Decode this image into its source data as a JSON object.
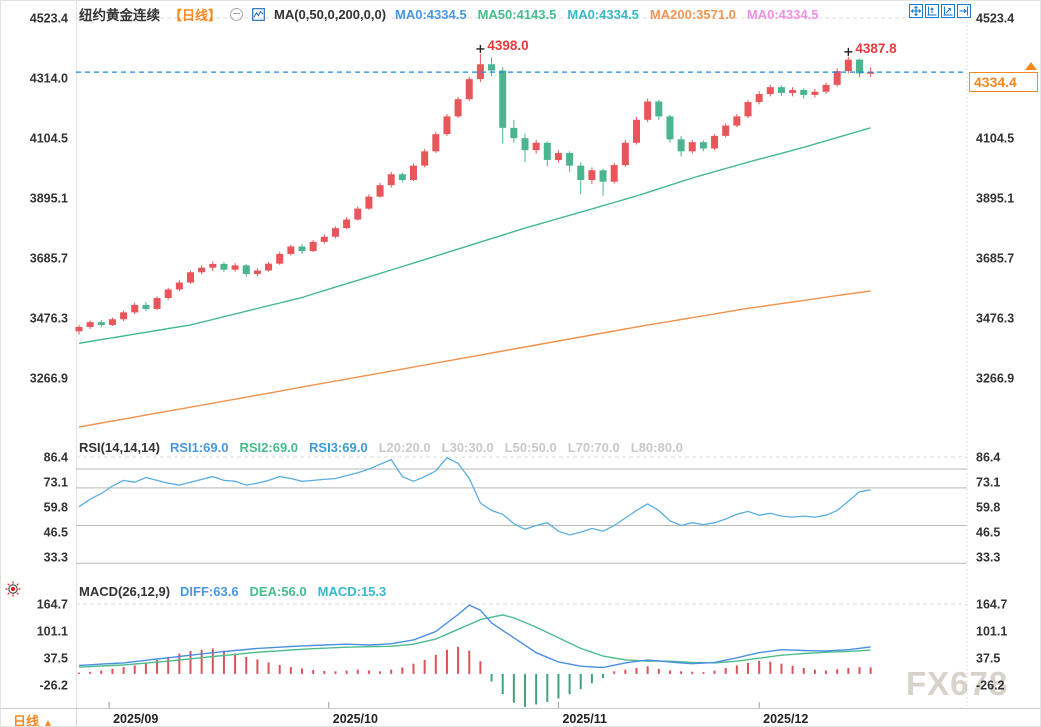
{
  "header": {
    "title": "纽约黄金连续",
    "period_tag": "【日线】",
    "ma_label": "MA(0,50,0,200,0,0)",
    "ma_values": [
      {
        "label": "MA0:4334.5",
        "color": "#4a97e0"
      },
      {
        "label": "MA50:4143.5",
        "color": "#45bd8b"
      },
      {
        "label": "MA0:4334.5",
        "color": "#38b8c4"
      },
      {
        "label": "MA200:3571.0",
        "color": "#f29552"
      },
      {
        "label": "MA0:4334.5",
        "color": "#ef8ee4"
      }
    ],
    "toolbar_icons": [
      "pan-tool",
      "fit-y-axis",
      "fit-x-axis",
      "jump-to-latest"
    ]
  },
  "rsi_header": {
    "label": "RSI(14,14,14)",
    "values": [
      {
        "label": "RSI1:69.0",
        "color": "#4a97e0"
      },
      {
        "label": "RSI2:69.0",
        "color": "#45bd8b"
      },
      {
        "label": "RSI3:69.0",
        "color": "#3b9bd8"
      },
      {
        "label": "L20:20.0",
        "color": "#c9c9c9"
      },
      {
        "label": "L30:30.0",
        "color": "#c9c9c9"
      },
      {
        "label": "L50:50.0",
        "color": "#c9c9c9"
      },
      {
        "label": "L70:70.0",
        "color": "#c9c9c9"
      },
      {
        "label": "L80:80.0",
        "color": "#c9c9c9"
      }
    ]
  },
  "macd_header": {
    "label": "MACD(26,12,9)",
    "values": [
      {
        "label": "DIFF:63.6",
        "color": "#4a97e0"
      },
      {
        "label": "DEA:56.0",
        "color": "#45bd8b"
      },
      {
        "label": "MACD:15.3",
        "color": "#35b8ce"
      }
    ]
  },
  "bottom": {
    "period_label": "日线",
    "arrow": "▲"
  },
  "price_tag": {
    "value": "4334.4"
  },
  "watermark": "FX678",
  "colors": {
    "up": "#e8555b",
    "down": "#4ab58e",
    "ma50": "#45b98c",
    "ma200": "#f0934e",
    "rsi_line": "#5aaede",
    "diff": "#4a90e2",
    "dea": "#4dbd8e",
    "hist_up": "#d9535a",
    "hist_down": "#3fa37c",
    "price_line": "#1e88e5",
    "tag": "#f7871f",
    "annotation": "#e8383d",
    "axis_text": "#333333",
    "grid_dash": "#dcdcdc",
    "rsi_level": "#b9b9b9"
  },
  "chart_data": {
    "type": "candlestick",
    "title": "纽约黄金连续【日线】",
    "legend_position": "top",
    "main": {
      "y_ticks": [
        "4523.4",
        "4314.0",
        "4104.5",
        "3895.1",
        "3685.7",
        "3476.3",
        "3266.9"
      ],
      "ylim": [
        3180,
        4523.4
      ],
      "last_price": 4334.4,
      "candles": [
        [
          3430,
          3452,
          3418,
          3445
        ],
        [
          3445,
          3468,
          3438,
          3462
        ],
        [
          3462,
          3470,
          3444,
          3452
        ],
        [
          3452,
          3478,
          3448,
          3472
        ],
        [
          3472,
          3502,
          3466,
          3496
        ],
        [
          3496,
          3530,
          3490,
          3522
        ],
        [
          3522,
          3532,
          3500,
          3508
        ],
        [
          3508,
          3552,
          3504,
          3546
        ],
        [
          3546,
          3582,
          3540,
          3576
        ],
        [
          3576,
          3608,
          3570,
          3600
        ],
        [
          3600,
          3642,
          3596,
          3636
        ],
        [
          3636,
          3660,
          3628,
          3652
        ],
        [
          3652,
          3674,
          3640,
          3665
        ],
        [
          3665,
          3672,
          3636,
          3645
        ],
        [
          3645,
          3668,
          3638,
          3660
        ],
        [
          3660,
          3664,
          3620,
          3630
        ],
        [
          3630,
          3650,
          3622,
          3642
        ],
        [
          3642,
          3672,
          3638,
          3666
        ],
        [
          3666,
          3708,
          3662,
          3700
        ],
        [
          3700,
          3732,
          3694,
          3726
        ],
        [
          3726,
          3734,
          3700,
          3710
        ],
        [
          3710,
          3748,
          3706,
          3742
        ],
        [
          3742,
          3768,
          3736,
          3760
        ],
        [
          3760,
          3796,
          3754,
          3790
        ],
        [
          3790,
          3828,
          3786,
          3820
        ],
        [
          3820,
          3866,
          3816,
          3858
        ],
        [
          3858,
          3908,
          3854,
          3900
        ],
        [
          3900,
          3948,
          3896,
          3940
        ],
        [
          3940,
          3986,
          3932,
          3978
        ],
        [
          3978,
          3984,
          3950,
          3958
        ],
        [
          3958,
          4016,
          3954,
          4008
        ],
        [
          4008,
          4066,
          4002,
          4058
        ],
        [
          4058,
          4126,
          4052,
          4118
        ],
        [
          4118,
          4188,
          4112,
          4180
        ],
        [
          4180,
          4248,
          4174,
          4240
        ],
        [
          4240,
          4318,
          4234,
          4310
        ],
        [
          4310,
          4398,
          4300,
          4362
        ],
        [
          4362,
          4386,
          4320,
          4340
        ],
        [
          4340,
          4352,
          4085,
          4140
        ],
        [
          4140,
          4168,
          4088,
          4104
        ],
        [
          4104,
          4120,
          4020,
          4062
        ],
        [
          4062,
          4098,
          4050,
          4088
        ],
        [
          4088,
          4092,
          4006,
          4028
        ],
        [
          4028,
          4062,
          4018,
          4052
        ],
        [
          4052,
          4058,
          3985,
          4008
        ],
        [
          4008,
          4020,
          3908,
          3958
        ],
        [
          3958,
          4002,
          3944,
          3992
        ],
        [
          3992,
          3998,
          3902,
          3952
        ],
        [
          3952,
          4018,
          3946,
          4010
        ],
        [
          4010,
          4098,
          4004,
          4088
        ],
        [
          4088,
          4178,
          4082,
          4168
        ],
        [
          4168,
          4242,
          4160,
          4232
        ],
        [
          4232,
          4238,
          4168,
          4180
        ],
        [
          4180,
          4186,
          4088,
          4100
        ],
        [
          4100,
          4112,
          4040,
          4058
        ],
        [
          4058,
          4098,
          4050,
          4090
        ],
        [
          4090,
          4096,
          4058,
          4068
        ],
        [
          4068,
          4118,
          4062,
          4112
        ],
        [
          4112,
          4156,
          4106,
          4148
        ],
        [
          4148,
          4188,
          4142,
          4180
        ],
        [
          4180,
          4238,
          4174,
          4230
        ],
        [
          4230,
          4268,
          4222,
          4258
        ],
        [
          4258,
          4290,
          4250,
          4282
        ],
        [
          4282,
          4288,
          4252,
          4262
        ],
        [
          4262,
          4282,
          4250,
          4272
        ],
        [
          4272,
          4278,
          4242,
          4255
        ],
        [
          4255,
          4276,
          4246,
          4266
        ],
        [
          4266,
          4298,
          4258,
          4290
        ],
        [
          4290,
          4348,
          4284,
          4338
        ],
        [
          4338,
          4387.8,
          4330,
          4378
        ],
        [
          4378,
          4382,
          4316,
          4330
        ],
        [
          4330,
          4352,
          4318,
          4334.4
        ]
      ],
      "ma50_anchors": [
        [
          0,
          3388
        ],
        [
          10,
          3452
        ],
        [
          20,
          3548
        ],
        [
          30,
          3668
        ],
        [
          40,
          3790
        ],
        [
          50,
          3902
        ],
        [
          55,
          3965
        ],
        [
          60,
          4020
        ],
        [
          65,
          4072
        ],
        [
          71,
          4140
        ]
      ],
      "ma200_anchors": [
        [
          0,
          3096
        ],
        [
          10,
          3165
        ],
        [
          20,
          3235
        ],
        [
          30,
          3305
        ],
        [
          40,
          3375
        ],
        [
          50,
          3445
        ],
        [
          60,
          3510
        ],
        [
          71,
          3571
        ]
      ],
      "high_markers": [
        {
          "index": 36,
          "price": 4398.0,
          "label": "4398.0"
        },
        {
          "index": 69,
          "price": 4387.8,
          "label": "4387.8"
        }
      ]
    },
    "rsi": {
      "y_ticks": [
        "86.4",
        "73.1",
        "59.8",
        "46.5",
        "33.3"
      ],
      "levels": [
        80,
        70,
        50,
        30
      ],
      "values": [
        60,
        64,
        67,
        71,
        74,
        73,
        75.5,
        74,
        72.5,
        71.5,
        73,
        74.5,
        76,
        74,
        73.5,
        71.5,
        72.5,
        74,
        76,
        75,
        73.5,
        74,
        74.5,
        75,
        76.5,
        78,
        80,
        82.5,
        85,
        76,
        73.5,
        76,
        79,
        86,
        83,
        75,
        62,
        58,
        56,
        51,
        48,
        50,
        51.5,
        47,
        45,
        46.5,
        48.5,
        47,
        50,
        54,
        58,
        61.5,
        58,
        52.5,
        50,
        51.5,
        50.5,
        51.5,
        53.5,
        56,
        57.5,
        55.5,
        56.5,
        55,
        54.5,
        55,
        54.5,
        55.5,
        58,
        63,
        68,
        69
      ]
    },
    "macd": {
      "y_ticks": [
        "164.7",
        "101.1",
        "37.5",
        "-26.2"
      ],
      "diff_anchors": [
        [
          0,
          20
        ],
        [
          4,
          26
        ],
        [
          8,
          38
        ],
        [
          12,
          50
        ],
        [
          16,
          60
        ],
        [
          20,
          66
        ],
        [
          24,
          70
        ],
        [
          26,
          68
        ],
        [
          28,
          71
        ],
        [
          30,
          80
        ],
        [
          32,
          100
        ],
        [
          34,
          140
        ],
        [
          35,
          162
        ],
        [
          36,
          150
        ],
        [
          37,
          120
        ],
        [
          39,
          85
        ],
        [
          41,
          50
        ],
        [
          43,
          28
        ],
        [
          45,
          18
        ],
        [
          47,
          15
        ],
        [
          49,
          26
        ],
        [
          51,
          33
        ],
        [
          53,
          28
        ],
        [
          55,
          24
        ],
        [
          57,
          27
        ],
        [
          59,
          38
        ],
        [
          61,
          50
        ],
        [
          63,
          57
        ],
        [
          65,
          55
        ],
        [
          67,
          54
        ],
        [
          69,
          57
        ],
        [
          71,
          63.6
        ]
      ],
      "dea_anchors": [
        [
          0,
          16
        ],
        [
          4,
          21
        ],
        [
          8,
          30
        ],
        [
          12,
          41
        ],
        [
          16,
          51
        ],
        [
          20,
          58
        ],
        [
          24,
          63
        ],
        [
          28,
          65
        ],
        [
          30,
          70
        ],
        [
          32,
          82
        ],
        [
          34,
          105
        ],
        [
          36,
          128
        ],
        [
          38,
          139
        ],
        [
          39,
          132
        ],
        [
          41,
          110
        ],
        [
          43,
          85
        ],
        [
          45,
          60
        ],
        [
          47,
          42
        ],
        [
          49,
          33
        ],
        [
          51,
          30
        ],
        [
          53,
          30
        ],
        [
          55,
          27
        ],
        [
          57,
          26
        ],
        [
          59,
          30
        ],
        [
          61,
          37
        ],
        [
          63,
          44
        ],
        [
          65,
          48
        ],
        [
          67,
          51
        ],
        [
          69,
          53
        ],
        [
          71,
          56
        ]
      ],
      "histogram": [
        3,
        5,
        8,
        12,
        16,
        20,
        26,
        33,
        40,
        48,
        54,
        57,
        60,
        55,
        48,
        40,
        34,
        27,
        21,
        16,
        13,
        9,
        7,
        6,
        8,
        10,
        8,
        6,
        10,
        15,
        24,
        33,
        45,
        57,
        64,
        55,
        30,
        -18,
        -48,
        -68,
        -78,
        -72,
        -66,
        -58,
        -48,
        -36,
        -22,
        -10,
        6,
        10,
        14,
        18,
        12,
        8,
        6,
        5,
        4,
        8,
        14,
        20,
        26,
        31,
        29,
        24,
        19,
        14,
        10,
        8,
        11,
        14,
        16,
        15.3
      ]
    },
    "x_labels": [
      {
        "label": "2025/09",
        "index": 2.7
      },
      {
        "label": "2025/10",
        "index": 22.4
      },
      {
        "label": "2025/11",
        "index": 43.0
      },
      {
        "label": "2025/12",
        "index": 61.0
      }
    ]
  }
}
